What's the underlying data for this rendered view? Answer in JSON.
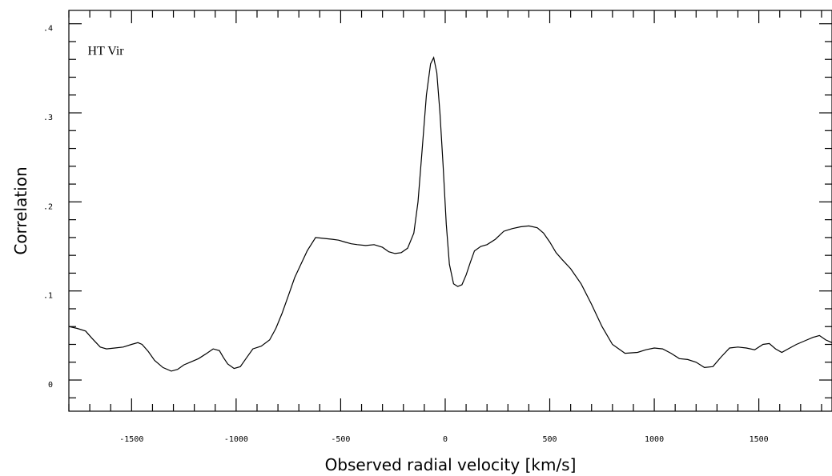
{
  "chart_data": {
    "type": "line",
    "title": "",
    "xlabel": "Observed radial velocity [km/s]",
    "ylabel": "Correlation",
    "xlim": [
      -1800,
      1850
    ],
    "ylim": [
      -0.035,
      0.415
    ],
    "xticks": [
      -1500,
      -1000,
      -500,
      0,
      500,
      1000,
      1500
    ],
    "xtick_labels": [
      "-1500",
      "-1000",
      "-500",
      "0",
      "500",
      "1000",
      "1500"
    ],
    "yticks": [
      0,
      0.1,
      0.2,
      0.3,
      0.4
    ],
    "ytick_labels": [
      "0",
      ".1",
      ".2",
      ".3",
      ".4"
    ],
    "grid": false,
    "legend": "none",
    "annotations": [
      {
        "text": "HT Vir",
        "x": -1710,
        "y": 0.365
      }
    ],
    "series": [
      {
        "color": "#000000",
        "x": [
          -1800,
          -1760,
          -1720,
          -1690,
          -1650,
          -1620,
          -1580,
          -1540,
          -1500,
          -1470,
          -1450,
          -1420,
          -1390,
          -1350,
          -1310,
          -1280,
          -1250,
          -1220,
          -1180,
          -1140,
          -1110,
          -1080,
          -1060,
          -1040,
          -1010,
          -980,
          -950,
          -920,
          -880,
          -840,
          -810,
          -780,
          -750,
          -720,
          -690,
          -660,
          -620,
          -580,
          -540,
          -510,
          -480,
          -450,
          -420,
          -380,
          -340,
          -300,
          -270,
          -240,
          -210,
          -180,
          -150,
          -130,
          -110,
          -90,
          -70,
          -55,
          -40,
          -25,
          -10,
          5,
          20,
          40,
          60,
          80,
          100,
          120,
          140,
          170,
          200,
          240,
          280,
          320,
          360,
          400,
          440,
          470,
          500,
          530,
          560,
          600,
          650,
          700,
          750,
          800,
          860,
          920,
          960,
          1000,
          1040,
          1080,
          1120,
          1160,
          1200,
          1240,
          1280,
          1320,
          1360,
          1400,
          1440,
          1480,
          1520,
          1550,
          1580,
          1610,
          1640,
          1680,
          1720,
          1760,
          1790,
          1820,
          1850
        ],
        "y": [
          0.06,
          0.058,
          0.055,
          0.047,
          0.037,
          0.035,
          0.036,
          0.037,
          0.04,
          0.042,
          0.04,
          0.032,
          0.022,
          0.014,
          0.01,
          0.012,
          0.017,
          0.02,
          0.024,
          0.03,
          0.035,
          0.033,
          0.025,
          0.018,
          0.013,
          0.015,
          0.025,
          0.035,
          0.038,
          0.045,
          0.058,
          0.075,
          0.095,
          0.115,
          0.13,
          0.145,
          0.16,
          0.159,
          0.158,
          0.157,
          0.155,
          0.153,
          0.152,
          0.151,
          0.152,
          0.149,
          0.144,
          0.142,
          0.143,
          0.148,
          0.165,
          0.2,
          0.26,
          0.32,
          0.355,
          0.362,
          0.345,
          0.3,
          0.24,
          0.175,
          0.13,
          0.108,
          0.105,
          0.107,
          0.118,
          0.132,
          0.145,
          0.15,
          0.152,
          0.158,
          0.167,
          0.17,
          0.172,
          0.173,
          0.171,
          0.165,
          0.155,
          0.143,
          0.135,
          0.125,
          0.108,
          0.085,
          0.06,
          0.04,
          0.03,
          0.031,
          0.034,
          0.036,
          0.035,
          0.03,
          0.024,
          0.023,
          0.02,
          0.014,
          0.015,
          0.026,
          0.036,
          0.037,
          0.036,
          0.034,
          0.04,
          0.041,
          0.035,
          0.031,
          0.035,
          0.04,
          0.044,
          0.048,
          0.05,
          0.045,
          0.042
        ]
      }
    ]
  }
}
